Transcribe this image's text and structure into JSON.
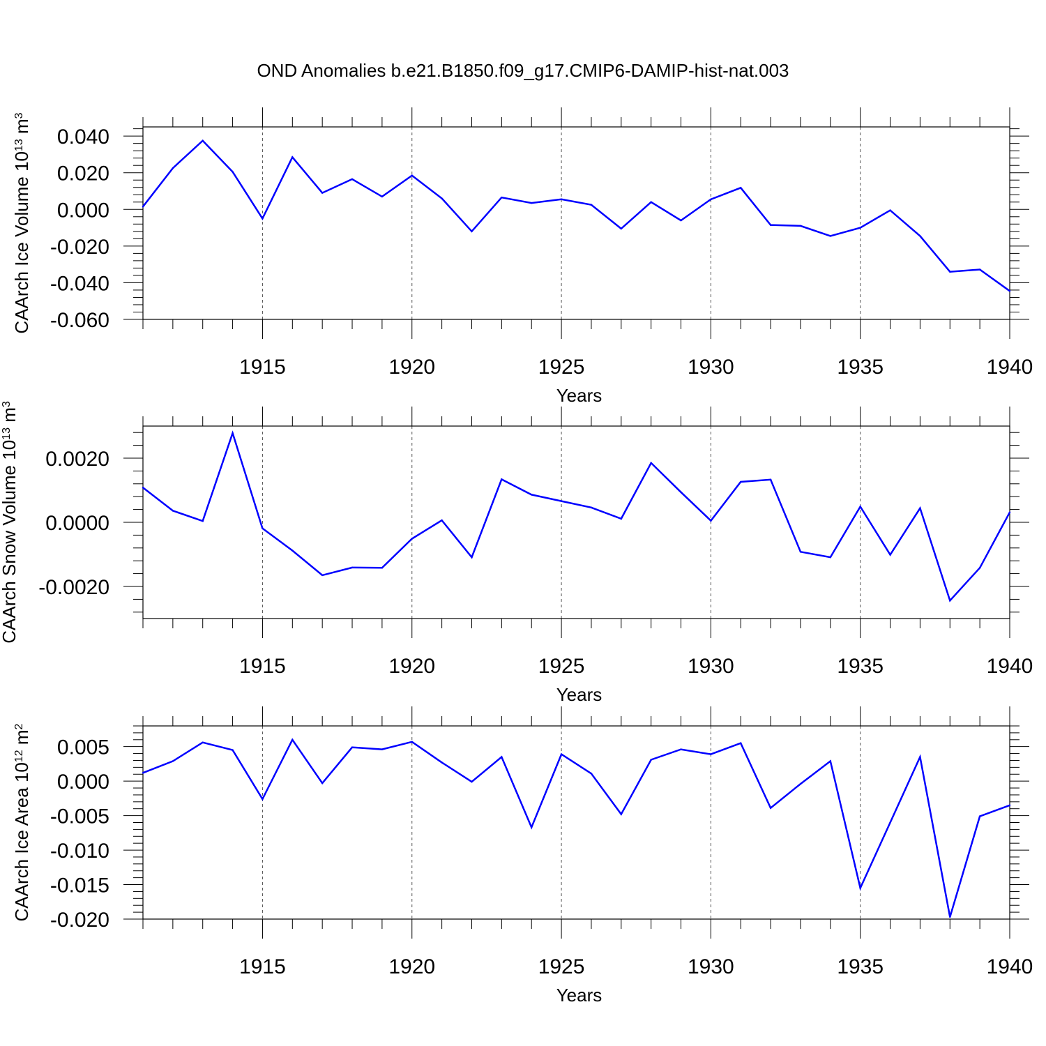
{
  "title": "OND Anomalies b.e21.B1850.f09_g17.CMIP6-DAMIP-hist-nat.003",
  "colors": {
    "line": "#0000ff",
    "grid": "#555555"
  },
  "chart_data": [
    {
      "type": "line",
      "title": "OND Anomalies b.e21.B1850.f09_g17.CMIP6-DAMIP-hist-nat.003",
      "xlabel": "Years",
      "ylabel": {
        "main": "CAArch Ice Volume 10",
        "exp": "13",
        "unit": " m",
        "unit_exp": "3"
      },
      "xlim": [
        1911,
        1940
      ],
      "ylim": [
        -0.06,
        0.045
      ],
      "grid": "vertical dashed at x ticks",
      "xticks": [
        1915,
        1920,
        1925,
        1930,
        1935,
        1940
      ],
      "xtick_labels": [
        "1915",
        "1920",
        "1925",
        "1930",
        "1935",
        "1940"
      ],
      "yticks": [
        0.04,
        0.02,
        0.0,
        -0.02,
        -0.04,
        -0.06
      ],
      "ytick_labels": [
        "0.040",
        "0.020",
        "0.000",
        "-0.020",
        "-0.040",
        "-0.060"
      ],
      "x": [
        1911,
        1912,
        1913,
        1914,
        1915,
        1916,
        1917,
        1918,
        1919,
        1920,
        1921,
        1922,
        1923,
        1924,
        1925,
        1926,
        1927,
        1928,
        1929,
        1930,
        1931,
        1932,
        1933,
        1934,
        1935,
        1936,
        1937,
        1938,
        1939,
        1940
      ],
      "values": [
        0.0015,
        0.0225,
        0.0375,
        0.0205,
        -0.005,
        0.0285,
        0.009,
        0.0165,
        0.007,
        0.0185,
        0.006,
        -0.012,
        0.0065,
        0.0035,
        0.0055,
        0.0025,
        -0.0105,
        0.004,
        -0.006,
        0.0055,
        0.0118,
        -0.0085,
        -0.009,
        -0.0145,
        -0.01,
        -0.0005,
        -0.0145,
        -0.034,
        -0.0328,
        -0.0445
      ]
    },
    {
      "type": "line",
      "xlabel": "Years",
      "ylabel": {
        "main": "CAArch Snow Volume 10",
        "exp": "13",
        "unit": " m",
        "unit_exp": "3"
      },
      "xlim": [
        1911,
        1940
      ],
      "ylim": [
        -0.003,
        0.003
      ],
      "grid": "vertical dashed at x ticks",
      "xticks": [
        1915,
        1920,
        1925,
        1930,
        1935,
        1940
      ],
      "xtick_labels": [
        "1915",
        "1920",
        "1925",
        "1930",
        "1935",
        "1940"
      ],
      "yticks": [
        0.002,
        0.0,
        -0.002
      ],
      "ytick_labels": [
        "0.0020",
        "0.0000",
        "-0.0020"
      ],
      "x": [
        1911,
        1912,
        1913,
        1914,
        1915,
        1916,
        1917,
        1918,
        1919,
        1920,
        1921,
        1922,
        1923,
        1924,
        1925,
        1926,
        1927,
        1928,
        1929,
        1930,
        1931,
        1932,
        1933,
        1934,
        1935,
        1936,
        1937,
        1938,
        1939,
        1940
      ],
      "values": [
        0.00108,
        0.00036,
        4e-05,
        0.00278,
        -0.00019,
        -0.00088,
        -0.00165,
        -0.00141,
        -0.00142,
        -0.00051,
        6e-05,
        -0.00109,
        0.00134,
        0.00086,
        0.00066,
        0.00046,
        0.00011,
        0.00185,
        0.00094,
        5e-05,
        0.00126,
        0.00133,
        -0.00092,
        -0.00109,
        0.00049,
        -0.00101,
        0.00044,
        -0.00244,
        -0.00142,
        0.00031
      ]
    },
    {
      "type": "line",
      "xlabel": "Years",
      "ylabel": {
        "main": "CAArch Ice Area 10",
        "exp": "12",
        "unit": " m",
        "unit_exp": "2"
      },
      "xlim": [
        1911,
        1940
      ],
      "ylim": [
        -0.02,
        0.008
      ],
      "grid": "vertical dashed at x ticks",
      "xticks": [
        1915,
        1920,
        1925,
        1930,
        1935,
        1940
      ],
      "xtick_labels": [
        "1915",
        "1920",
        "1925",
        "1930",
        "1935",
        "1940"
      ],
      "yticks": [
        0.005,
        0.0,
        -0.005,
        -0.01,
        -0.015,
        -0.02
      ],
      "ytick_labels": [
        "0.005",
        "0.000",
        "-0.005",
        "-0.010",
        "-0.015",
        "-0.020"
      ],
      "x": [
        1911,
        1912,
        1913,
        1914,
        1915,
        1916,
        1917,
        1918,
        1919,
        1920,
        1921,
        1922,
        1923,
        1924,
        1925,
        1926,
        1927,
        1928,
        1929,
        1930,
        1931,
        1932,
        1933,
        1934,
        1935,
        1936,
        1937,
        1938,
        1939,
        1940
      ],
      "values": [
        0.0012,
        0.0029,
        0.0056,
        0.0045,
        -0.0026,
        0.006,
        -0.0003,
        0.0049,
        0.0046,
        0.0057,
        0.0027,
        -0.0001,
        0.0035,
        -0.0067,
        0.0039,
        0.0011,
        -0.0048,
        0.0031,
        0.0046,
        0.0039,
        0.0055,
        -0.0039,
        -0.0004,
        0.0029,
        -0.0155,
        -0.006,
        0.0035,
        -0.0197,
        -0.0051,
        -0.0035
      ]
    }
  ]
}
